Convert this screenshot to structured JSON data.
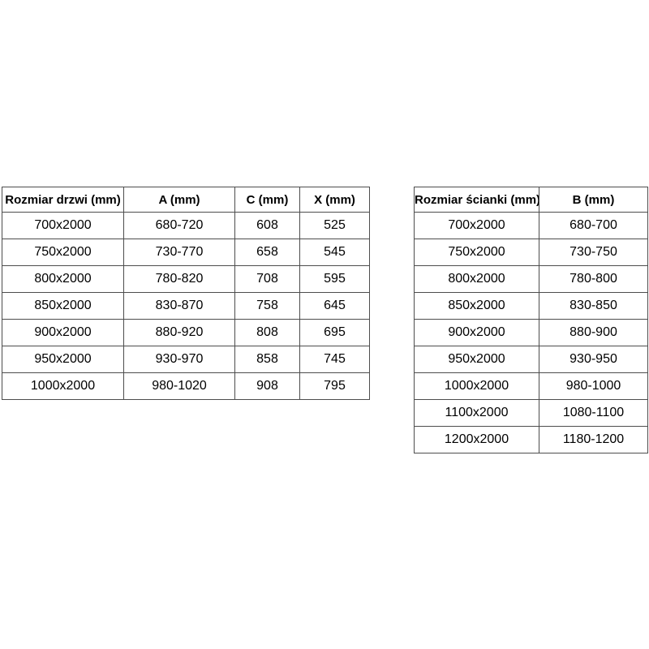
{
  "tables": [
    {
      "name": "door-sizes-table",
      "headers": [
        "Rozmiar drzwi (mm)",
        "A (mm)",
        "C (mm)",
        "X (mm)"
      ],
      "rows": [
        [
          "700x2000",
          "680-720",
          "608",
          "525"
        ],
        [
          "750x2000",
          "730-770",
          "658",
          "545"
        ],
        [
          "800x2000",
          "780-820",
          "708",
          "595"
        ],
        [
          "850x2000",
          "830-870",
          "758",
          "645"
        ],
        [
          "900x2000",
          "880-920",
          "808",
          "695"
        ],
        [
          "950x2000",
          "930-970",
          "858",
          "745"
        ],
        [
          "1000x2000",
          "980-1020",
          "908",
          "795"
        ]
      ]
    },
    {
      "name": "wall-sizes-table",
      "headers": [
        "Rozmiar ścianki (mm)",
        "B (mm)"
      ],
      "rows": [
        [
          "700x2000",
          "680-700"
        ],
        [
          "750x2000",
          "730-750"
        ],
        [
          "800x2000",
          "780-800"
        ],
        [
          "850x2000",
          "830-850"
        ],
        [
          "900x2000",
          "880-900"
        ],
        [
          "950x2000",
          "930-950"
        ],
        [
          "1000x2000",
          "980-1000"
        ],
        [
          "1100x2000",
          "1080-1100"
        ],
        [
          "1200x2000",
          "1180-1200"
        ]
      ]
    }
  ],
  "colors": {
    "border": "#4d4d4d",
    "text": "#000000",
    "background": "#ffffff"
  }
}
